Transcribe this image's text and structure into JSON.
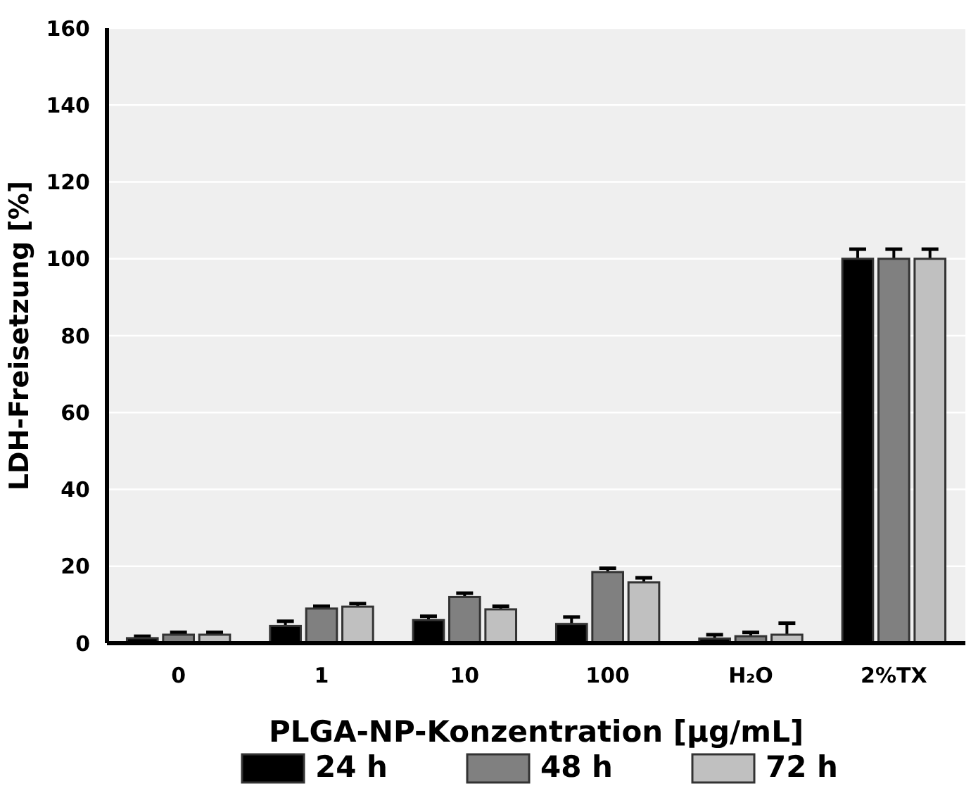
{
  "chart_data": {
    "type": "bar",
    "xlabel": "PLGA-NP-Konzentration [µg/mL]",
    "ylabel": "LDH-Freisetzung [%]",
    "categories": [
      "0",
      "1",
      "10",
      "100",
      "H₂O",
      "2%TX"
    ],
    "series": [
      {
        "name": "24 h",
        "color": "#000000",
        "values": [
          1.3,
          4.5,
          6,
          5,
          1.2,
          100
        ],
        "errors": [
          0.5,
          1.2,
          1,
          1.8,
          1,
          2.5
        ]
      },
      {
        "name": "48 h",
        "color": "#808080",
        "values": [
          2.2,
          9,
          12,
          18.5,
          1.8,
          100
        ],
        "errors": [
          0.6,
          0.6,
          1,
          1,
          1,
          2.5
        ]
      },
      {
        "name": "72 h",
        "color": "#c0c0c0",
        "values": [
          2.2,
          9.5,
          8.8,
          15.8,
          2.2,
          100
        ],
        "errors": [
          0.6,
          0.8,
          0.8,
          1.2,
          3,
          2.5
        ]
      }
    ],
    "ylim": [
      0,
      160
    ],
    "yticks": [
      0,
      20,
      40,
      60,
      80,
      100,
      120,
      140,
      160
    ],
    "grid": "y",
    "legend": "bottom"
  }
}
